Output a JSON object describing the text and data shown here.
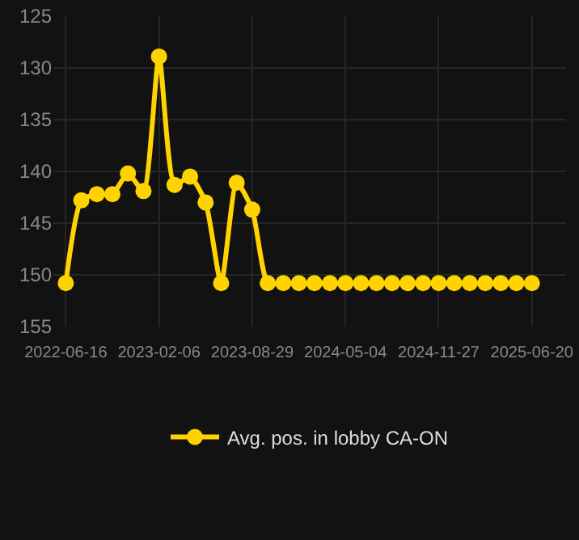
{
  "chart_data": {
    "type": "line",
    "categories": [
      "2022-06-16",
      null,
      null,
      null,
      null,
      null,
      "2023-02-06",
      null,
      null,
      null,
      null,
      null,
      "2023-08-29",
      null,
      null,
      null,
      null,
      null,
      "2024-05-04",
      null,
      null,
      null,
      null,
      null,
      "2024-11-27",
      null,
      null,
      null,
      null,
      null,
      "2025-06-20"
    ],
    "series": [
      {
        "name": "Avg. pos. in lobby CA-ON",
        "color": "#ffd300",
        "values": [
          150.8,
          142.8,
          142.2,
          142.2,
          140.2,
          141.9,
          128.9,
          141.3,
          140.5,
          143,
          150.8,
          141.1,
          143.7,
          150.8,
          150.8,
          150.8,
          150.8,
          150.8,
          150.8,
          150.8,
          150.8,
          150.8,
          150.8,
          150.8,
          150.8,
          150.8,
          150.8,
          150.8,
          150.8,
          150.8,
          150.8
        ]
      }
    ],
    "ylim": [
      155,
      125
    ],
    "yticks": [
      125,
      130,
      135,
      140,
      145,
      150,
      155
    ],
    "grid": true,
    "legend": "bottom",
    "marker": "circle",
    "line_style": "solid"
  }
}
